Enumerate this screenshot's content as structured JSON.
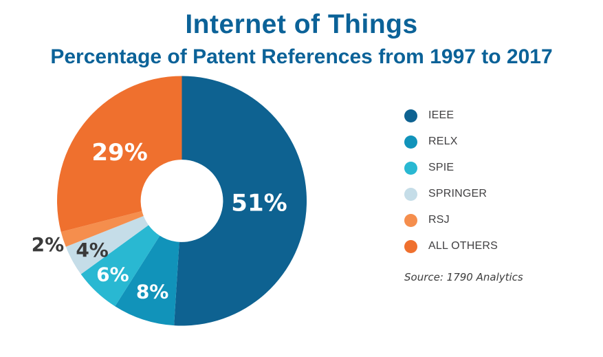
{
  "chart_data": {
    "type": "pie",
    "donut": true,
    "title": "Internet of Things",
    "subtitle": "Percentage of Patent References from 1997 to 2017",
    "source": "Source: 1790 Analytics",
    "legend_position": "right",
    "start_angle_deg": 0,
    "direction": "clockwise",
    "hole_radius_frac": 0.33,
    "categories": [
      "IEEE",
      "RELX",
      "SPIE",
      "SPRINGER",
      "RSJ",
      "ALL OTHERS"
    ],
    "values": [
      51,
      8,
      6,
      4,
      2,
      29
    ],
    "slices": [
      {
        "label": "IEEE",
        "value": 51,
        "display": "51%",
        "color": "#0e6291",
        "label_color": "#ffffff",
        "label_radius_frac": 0.62,
        "label_size": "large"
      },
      {
        "label": "RELX",
        "value": 8,
        "display": "8%",
        "color": "#1193ba",
        "label_color": "#ffffff",
        "label_radius_frac": 0.765,
        "label_size": "small"
      },
      {
        "label": "SPIE",
        "value": 6,
        "display": "6%",
        "color": "#29b8d2",
        "label_color": "#ffffff",
        "label_radius_frac": 0.81,
        "label_size": "small"
      },
      {
        "label": "SPRINGER",
        "value": 4,
        "display": "4%",
        "color": "#c5dde8",
        "label_color": "#3a3a3a",
        "label_radius_frac": 0.82,
        "label_size": "small"
      },
      {
        "label": "RSJ",
        "value": 2,
        "display": "2%",
        "color": "#f58e4d",
        "label_color": "#3a3a3a",
        "label_radius_frac": 1.13,
        "label_size": "small"
      },
      {
        "label": "ALL OTHERS",
        "value": 29,
        "display": "29%",
        "color": "#ef702e",
        "label_color": "#ffffff",
        "label_radius_frac": 0.63,
        "label_size": "large"
      }
    ]
  },
  "colors": {
    "title_text": "#0b6298",
    "legend_text": "#414042",
    "source_text": "#3d3d3d",
    "dark_label": "#3a3a3a",
    "background": "#ffffff"
  }
}
